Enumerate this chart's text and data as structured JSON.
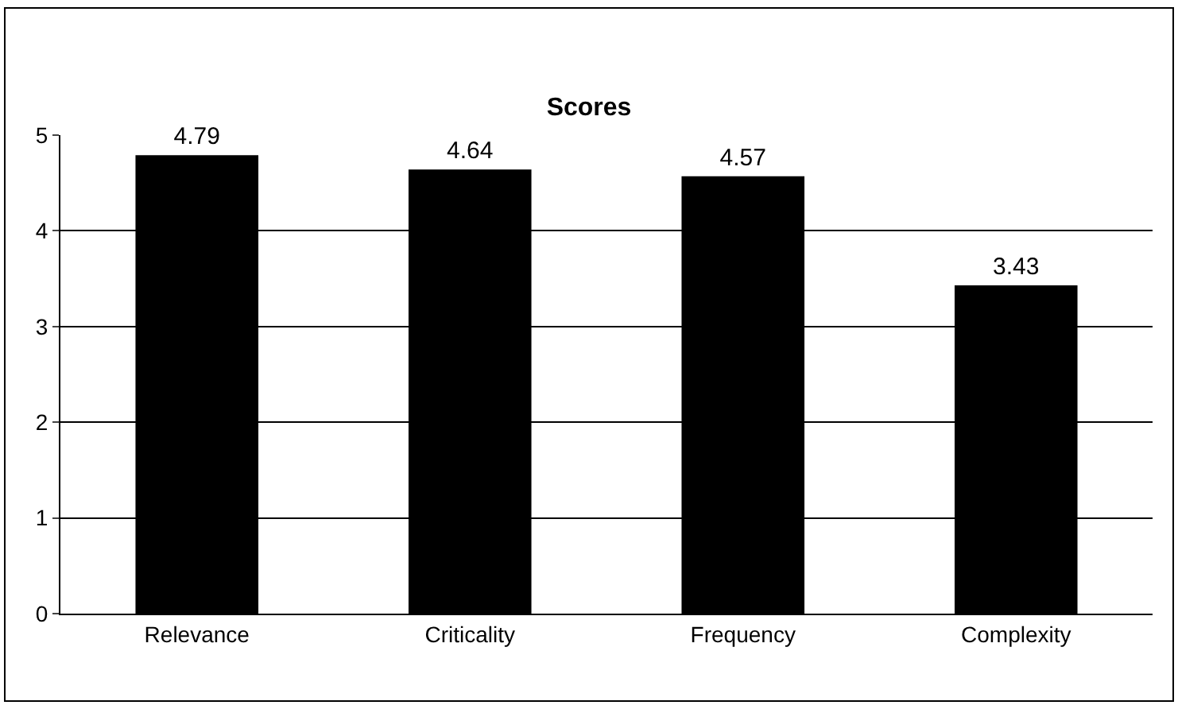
{
  "chart_data": {
    "type": "bar",
    "title": "Scores",
    "categories": [
      "Relevance",
      "Criticality",
      "Frequency",
      "Complexity"
    ],
    "values": [
      4.79,
      4.64,
      4.57,
      3.43
    ],
    "color": "#000000",
    "ylim": [
      0,
      5
    ],
    "yticks": [
      0,
      1,
      2,
      3,
      4,
      5
    ],
    "grid": "y",
    "data_labels": true
  }
}
